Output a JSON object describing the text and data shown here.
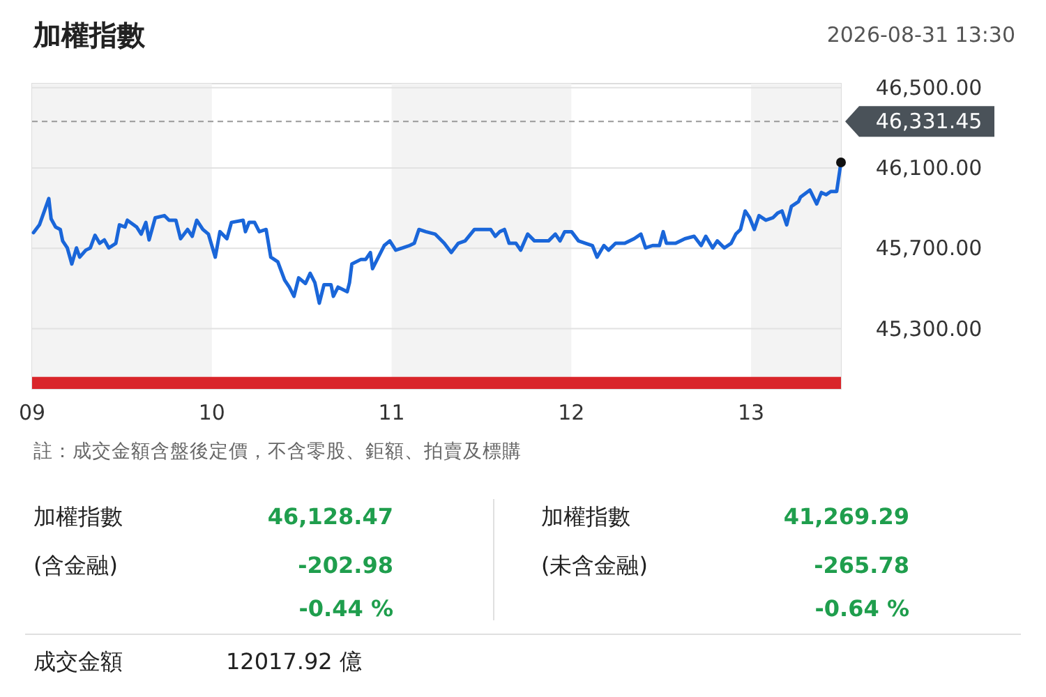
{
  "chart_data": [
    {
      "type": "line",
      "title": "加權指數",
      "subtitle": "2026-08-31 13:30",
      "x": [
        9.008,
        9.041,
        9.093,
        9.106,
        9.131,
        9.157,
        9.17,
        9.196,
        9.221,
        9.247,
        9.265,
        9.299,
        9.324,
        9.35,
        9.376,
        9.402,
        9.427,
        9.466,
        9.486,
        9.517,
        9.53,
        9.582,
        9.607,
        9.633,
        9.651,
        9.685,
        9.736,
        9.762,
        9.8,
        9.826,
        9.865,
        9.891,
        9.916,
        9.95,
        9.981,
        10.019,
        10.045,
        10.084,
        10.109,
        10.174,
        10.187,
        10.207,
        10.238,
        10.264,
        10.302,
        10.328,
        10.367,
        10.405,
        10.431,
        10.457,
        10.483,
        10.521,
        10.547,
        10.573,
        10.598,
        10.624,
        10.663,
        10.676,
        10.702,
        10.753,
        10.766,
        10.779,
        10.83,
        10.856,
        10.882,
        10.894,
        10.92,
        10.959,
        10.99,
        11.023,
        11.062,
        11.1,
        11.126,
        11.152,
        11.19,
        11.242,
        11.293,
        11.332,
        11.371,
        11.409,
        11.461,
        11.551,
        11.577,
        11.602,
        11.628,
        11.654,
        11.692,
        11.718,
        11.757,
        11.795,
        11.873,
        11.911,
        11.937,
        11.963,
        12.001,
        12.04,
        12.079,
        12.117,
        12.143,
        12.181,
        12.207,
        12.246,
        12.297,
        12.349,
        12.387,
        12.413,
        12.452,
        12.49,
        12.511,
        12.529,
        12.58,
        12.632,
        12.683,
        12.722,
        12.748,
        12.786,
        12.812,
        12.851,
        12.889,
        12.915,
        12.941,
        12.967,
        12.992,
        13.018,
        13.044,
        13.082,
        13.121,
        13.147,
        13.172,
        13.198,
        13.224,
        13.263,
        13.275,
        13.327,
        13.365,
        13.391,
        13.417,
        13.443,
        13.476,
        13.5
      ],
      "series": [
        {
          "type": "line",
          "color": "#1a66d9",
          "values": [
            45778,
            45817,
            45948,
            45847,
            45806,
            45794,
            45737,
            45702,
            45622,
            45702,
            45656,
            45691,
            45702,
            45765,
            45725,
            45742,
            45702,
            45725,
            45817,
            45806,
            45840,
            45806,
            45771,
            45829,
            45742,
            45852,
            45863,
            45840,
            45840,
            45748,
            45794,
            45760,
            45840,
            45794,
            45771,
            45656,
            45783,
            45748,
            45829,
            45840,
            45783,
            45829,
            45829,
            45783,
            45794,
            45656,
            45633,
            45542,
            45507,
            45461,
            45553,
            45525,
            45576,
            45530,
            45427,
            45519,
            45519,
            45461,
            45507,
            45484,
            45530,
            45622,
            45645,
            45645,
            45679,
            45599,
            45645,
            45714,
            45737,
            45691,
            45702,
            45714,
            45725,
            45794,
            45783,
            45771,
            45725,
            45679,
            45725,
            45737,
            45794,
            45794,
            45760,
            45783,
            45794,
            45725,
            45725,
            45691,
            45771,
            45737,
            45737,
            45771,
            45737,
            45783,
            45783,
            45737,
            45725,
            45714,
            45656,
            45714,
            45691,
            45725,
            45725,
            45748,
            45771,
            45702,
            45714,
            45714,
            45783,
            45725,
            45725,
            45748,
            45760,
            45714,
            45760,
            45702,
            45737,
            45702,
            45725,
            45771,
            45794,
            45886,
            45852,
            45794,
            45863,
            45840,
            45852,
            45875,
            45886,
            45817,
            45909,
            45932,
            45955,
            45990,
            45921,
            45978,
            45967,
            45983,
            45983,
            46128
          ]
        },
        {
          "type": "scatter",
          "color": "#111111",
          "x": [
            13.5
          ],
          "values": [
            46128
          ]
        }
      ],
      "xlim": [
        9,
        13.5
      ],
      "xticks": [
        {
          "value": 9,
          "label": "09"
        },
        {
          "value": 10,
          "label": "10"
        },
        {
          "value": 11,
          "label": "11"
        },
        {
          "value": 12,
          "label": "12"
        },
        {
          "value": 13,
          "label": "13"
        }
      ],
      "ylim": [
        45000,
        46520
      ],
      "yticks": [
        {
          "value": 45300,
          "label": "45,300.00"
        },
        {
          "value": 45700,
          "label": "45,700.00"
        },
        {
          "value": 46100,
          "label": "46,100.00"
        },
        {
          "value": 46500,
          "label": "46,500.00"
        }
      ],
      "grid": "y",
      "line_style": "solid",
      "ref_lines": [
        {
          "axis": "y",
          "value": 46331.45,
          "label": "46,331.45",
          "color": "#999999",
          "line_style": "dashed"
        }
      ],
      "bands": [
        {
          "axis": "x",
          "from": 9,
          "to": 10,
          "color": "#f3f3f3"
        },
        {
          "axis": "x",
          "from": 11,
          "to": 12,
          "color": "#f3f3f3"
        },
        {
          "axis": "x",
          "from": 13,
          "to": 13.5,
          "color": "#f3f3f3"
        },
        {
          "axis": "y",
          "from": 45000,
          "to": 45060,
          "color": "#d9252a"
        }
      ],
      "annotations": [
        "註：成交金額含盤後定價，不含零股、鉅額、拍賣及標購"
      ]
    },
    {
      "type": "other",
      "annotations": [
        "加權指數",
        "46,128.47",
        "(含金融)",
        "-202.98",
        "-0.44 %",
        "加權指數",
        "41,269.29",
        "(未含金融)",
        "-265.78",
        "-0.64 %",
        "成交金額",
        "12017.92 億"
      ]
    }
  ]
}
